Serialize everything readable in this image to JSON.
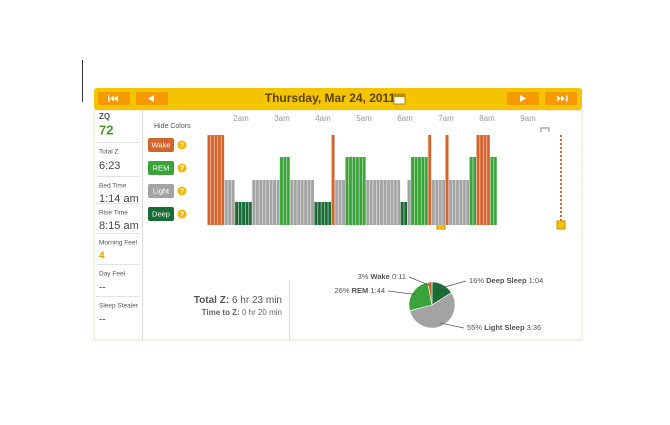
{
  "header": {
    "title": "Thursday, Mar 24, 2011"
  },
  "sidebar": [
    {
      "label": "ZQ",
      "value": 72
    },
    {
      "label": "Total Z",
      "value": "6:23"
    },
    {
      "label": "Bed Time",
      "value": "1:14 am"
    },
    {
      "label": "Rise Time",
      "value": "8:15 am"
    },
    {
      "label": "Morning Feel",
      "value": 4
    },
    {
      "label": "Day Feel",
      "value": "--"
    },
    {
      "label": "Sleep Stealer",
      "value": "--"
    }
  ],
  "hypnogram": {
    "hide_colors": "Hide Colors",
    "legend": [
      {
        "name": "Wake",
        "color": "#d2652d"
      },
      {
        "name": "REM",
        "color": "#3aa43a"
      },
      {
        "name": "Light",
        "color": "#a3a3a3"
      },
      {
        "name": "Deep",
        "color": "#1b6b35"
      }
    ],
    "hours": [
      "2am",
      "3am",
      "4am",
      "5am",
      "6am",
      "7am",
      "8am",
      "9am"
    ],
    "segments": [
      {
        "stage": "Wake",
        "length": 5
      },
      {
        "stage": "Light",
        "length": 3
      },
      {
        "stage": "Deep",
        "length": 5
      },
      {
        "stage": "Light",
        "length": 8
      },
      {
        "stage": "REM",
        "length": 3
      },
      {
        "stage": "Light",
        "length": 7
      },
      {
        "stage": "Deep",
        "length": 5
      },
      {
        "stage": "Wake",
        "length": 1
      },
      {
        "stage": "Light",
        "length": 3
      },
      {
        "stage": "REM",
        "length": 6
      },
      {
        "stage": "Light",
        "length": 10
      },
      {
        "stage": "Deep",
        "length": 2
      },
      {
        "stage": "Light",
        "length": 1
      },
      {
        "stage": "REM",
        "length": 5
      },
      {
        "stage": "Wake",
        "length": 1
      },
      {
        "stage": "Light",
        "length": 4
      },
      {
        "stage": "Wake",
        "length": 1
      },
      {
        "stage": "Light",
        "length": 6
      },
      {
        "stage": "REM",
        "length": 2
      },
      {
        "stage": "Wake",
        "length": 4
      },
      {
        "stage": "REM",
        "length": 2
      }
    ]
  },
  "summary": {
    "total_z_label": "Total Z:",
    "total_z": "6 hr 23 min",
    "time_to_z_label": "Time to Z:",
    "time_to_z": "0 hr 20 min"
  },
  "pie": {
    "names": [
      "Deep Sleep",
      "Light Sleep",
      "REM",
      "Wake"
    ],
    "values": [
      16,
      55,
      26,
      3
    ],
    "value_labels": [
      "16%",
      "55%",
      "26%",
      "3%"
    ],
    "durations": [
      "1:04",
      "3:36",
      "1:44",
      "0:11"
    ],
    "colors": [
      "#1b6b35",
      "#a3a3a3",
      "#3aa43a",
      "#d2652d"
    ]
  }
}
